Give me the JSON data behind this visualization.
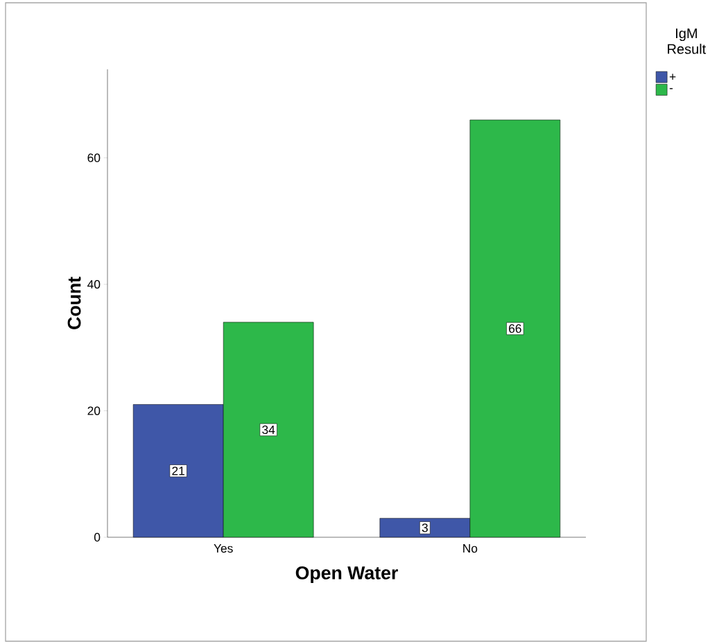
{
  "chart_data": {
    "type": "bar",
    "categories": [
      "Yes",
      "No"
    ],
    "series": [
      {
        "name": "+",
        "color": "#3f57a8",
        "values": [
          21,
          3
        ]
      },
      {
        "name": "-",
        "color": "#2db84a",
        "values": [
          34,
          66
        ]
      }
    ],
    "xlabel": "Open Water",
    "ylabel": "Count",
    "legend_title": "IgM Result",
    "ylim": [
      0,
      74
    ],
    "yticks": [
      0,
      20,
      40,
      60
    ],
    "data_labels": true,
    "legend": "top right",
    "grid": false
  }
}
